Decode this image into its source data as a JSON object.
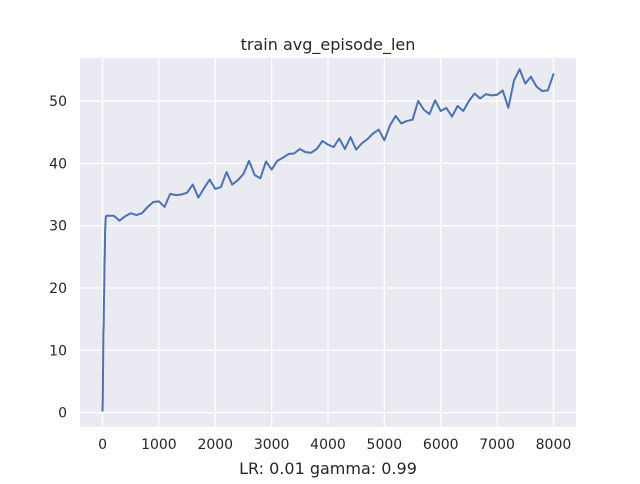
{
  "chart_data": {
    "type": "line",
    "title": "train avg_episode_len",
    "xlabel": "LR: 0.01 gamma: 0.99",
    "ylabel": "",
    "xlim": [
      -400,
      8400
    ],
    "ylim": [
      -2.3,
      56.9
    ],
    "xticks": [
      0,
      1000,
      2000,
      3000,
      4000,
      5000,
      6000,
      7000,
      8000
    ],
    "yticks": [
      0,
      10,
      20,
      30,
      40,
      50
    ],
    "grid": true,
    "legend": "none",
    "colors": {
      "background": "#eaeaf2",
      "grid": "#ffffff",
      "line": "#4c72b0"
    },
    "series": [
      {
        "x": [
          0,
          5,
          10,
          15,
          20,
          25,
          30,
          35,
          40,
          45,
          50,
          55,
          60,
          65,
          70,
          75,
          80,
          90,
          100,
          150,
          200,
          300,
          400,
          500,
          600,
          700,
          800,
          900,
          1000,
          1100,
          1200,
          1300,
          1400,
          1500,
          1600,
          1700,
          1800,
          1900,
          2000,
          2100,
          2200,
          2300,
          2400,
          2500,
          2600,
          2700,
          2800,
          2900,
          3000,
          3100,
          3200,
          3300,
          3400,
          3500,
          3600,
          3700,
          3800,
          3900,
          4000,
          4100,
          4200,
          4300,
          4400,
          4500,
          4600,
          4700,
          4800,
          4900,
          5000,
          5100,
          5200,
          5300,
          5400,
          5500,
          5600,
          5700,
          5800,
          5900,
          6000,
          6100,
          6200,
          6300,
          6400,
          6500,
          6600,
          6700,
          6800,
          6900,
          7000,
          7100,
          7200,
          7300,
          7400,
          7500,
          7600,
          7700,
          7800,
          7900,
          8000
        ],
        "y": [
          0.3,
          3.0,
          8.0,
          13.0,
          14.0,
          18.0,
          20.0,
          24.0,
          25.5,
          29.0,
          30.0,
          31.0,
          31.5,
          31.5,
          31.6,
          31.6,
          31.6,
          31.6,
          31.6,
          31.6,
          31.6,
          30.8,
          31.5,
          32.0,
          31.7,
          32.0,
          33.0,
          33.8,
          33.9,
          33.0,
          35.1,
          34.9,
          35.0,
          35.3,
          36.6,
          34.5,
          36.0,
          37.4,
          35.9,
          36.2,
          38.6,
          36.6,
          37.3,
          38.3,
          40.4,
          38.1,
          37.6,
          40.3,
          39.0,
          40.4,
          40.9,
          41.5,
          41.6,
          42.3,
          41.8,
          41.7,
          42.3,
          43.6,
          43.0,
          42.6,
          44.0,
          42.3,
          44.2,
          42.2,
          43.2,
          43.9,
          44.8,
          45.4,
          43.7,
          46.1,
          47.6,
          46.4,
          46.8,
          47.0,
          50.0,
          48.6,
          47.9,
          50.1,
          48.4,
          48.9,
          47.5,
          49.2,
          48.4,
          50.0,
          51.2,
          50.4,
          51.1,
          50.9,
          51.0,
          51.7,
          48.9,
          53.3,
          55.1,
          52.8,
          53.9,
          52.3,
          51.6,
          51.7,
          54.3
        ]
      }
    ]
  }
}
